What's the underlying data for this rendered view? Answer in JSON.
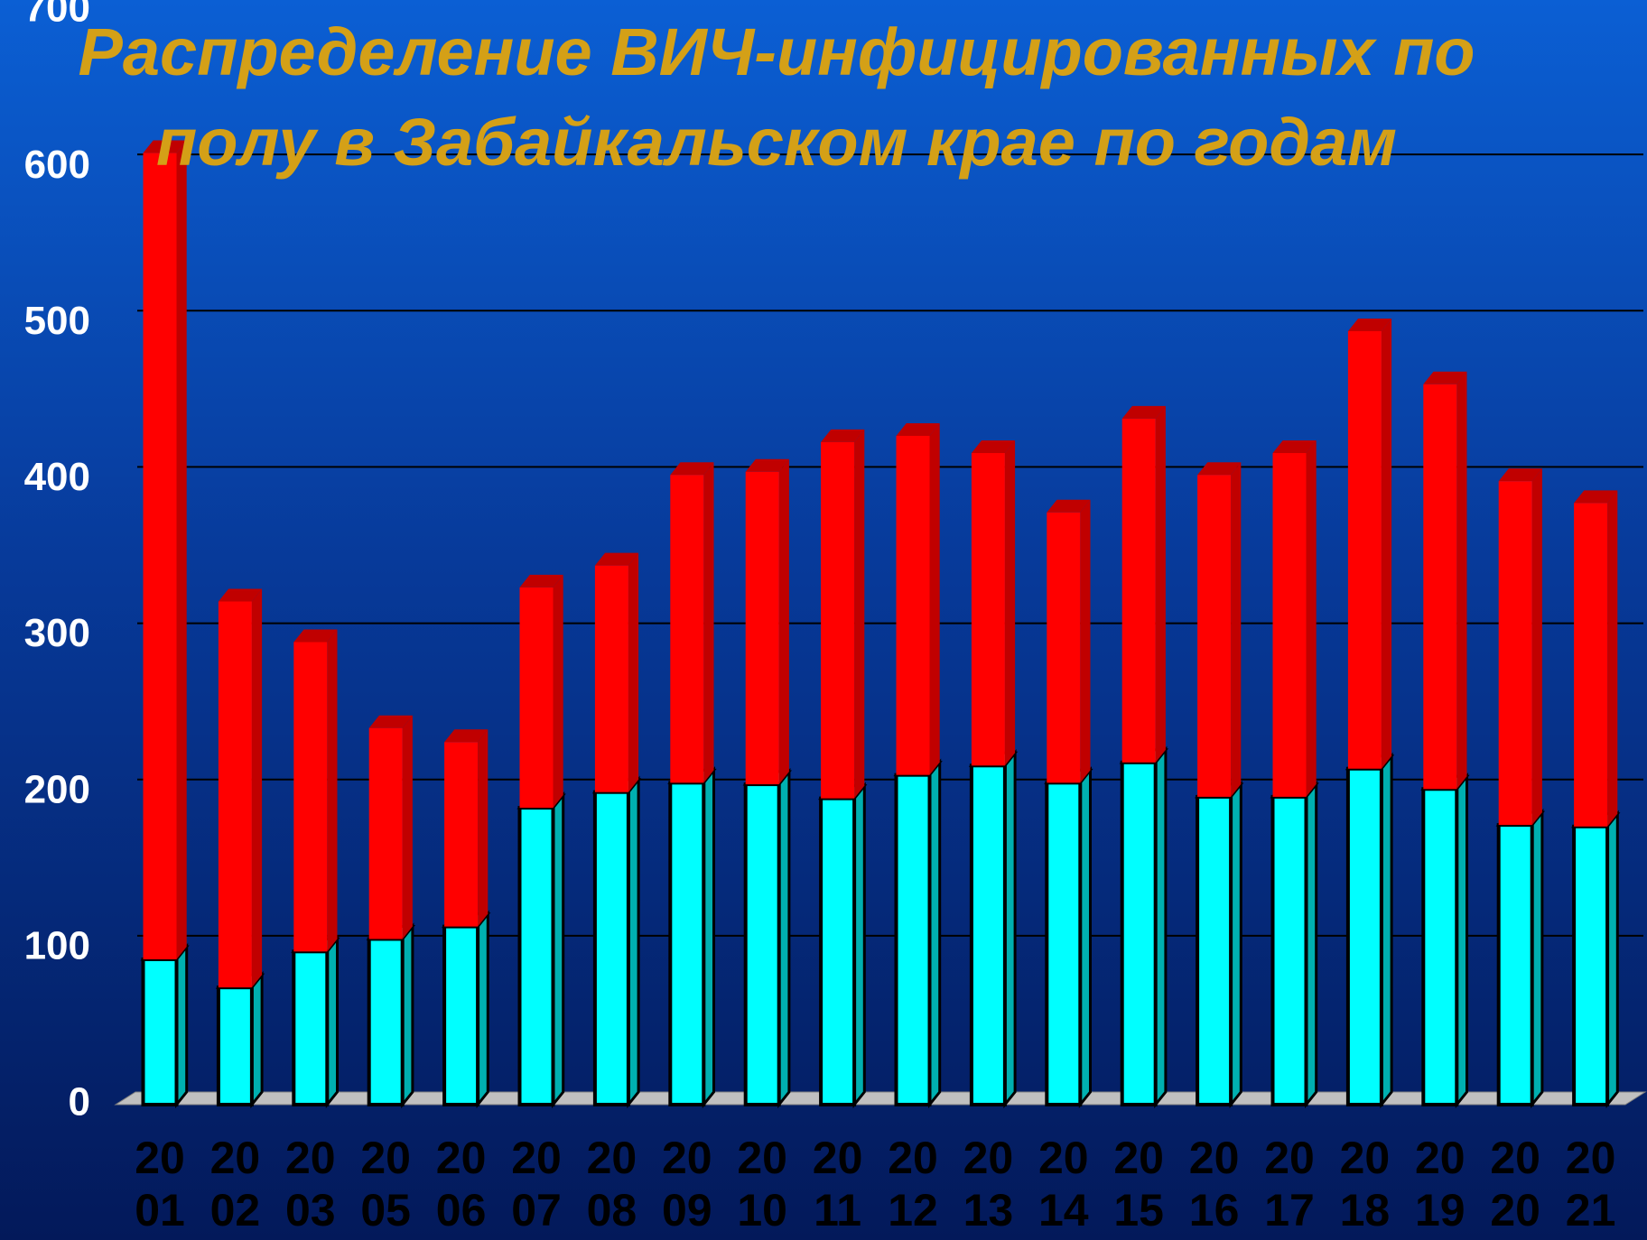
{
  "chart_data": {
    "type": "bar",
    "stacked": true,
    "title": "Распределение ВИЧ-инфицированных по полу в Забайкальском крае по годам",
    "categories": [
      "2001",
      "2002",
      "2003",
      "2005",
      "2006",
      "2007",
      "2008",
      "2009",
      "2010",
      "2011",
      "2012",
      "2013",
      "2014",
      "2015",
      "2016",
      "2017",
      "2018",
      "2019",
      "2020",
      "2021"
    ],
    "series": [
      {
        "color": "#00ffff",
        "values": [
          93,
          75,
          98,
          106,
          114,
          190,
          200,
          206,
          205,
          196,
          211,
          217,
          206,
          219,
          197,
          197,
          215,
          202,
          179,
          178
        ]
      },
      {
        "color": "#ff0000",
        "values": [
          516,
          247,
          198,
          135,
          118,
          141,
          145,
          197,
          200,
          228,
          217,
          200,
          173,
          220,
          206,
          220,
          280,
          259,
          220,
          207
        ]
      }
    ],
    "ylim": [
      0,
      700
    ],
    "yticks": [
      0,
      100,
      200,
      300,
      400,
      500,
      600,
      700
    ],
    "grid": true
  }
}
